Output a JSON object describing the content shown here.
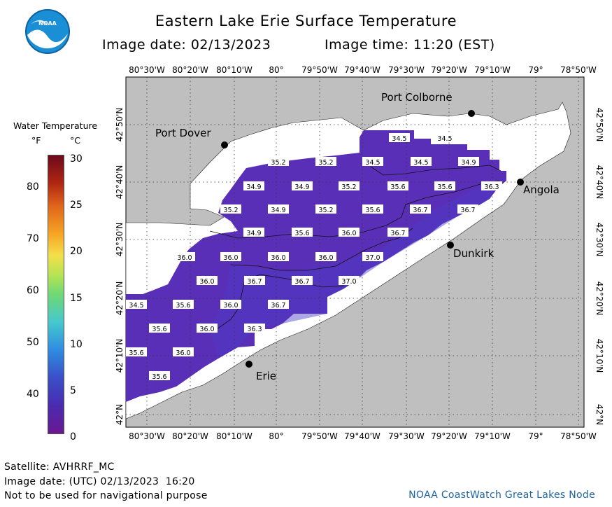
{
  "header": {
    "title": "Eastern Lake Erie Surface Temperature",
    "image_date_label": "Image date: 02/13/2023",
    "image_time_label": "Image time: 11:20 (EST)"
  },
  "logo": {
    "text": "NOAA"
  },
  "legend": {
    "title": "Water Temperature",
    "unit_f": "°F",
    "unit_c": "°C",
    "f_ticks": [
      "80",
      "70",
      "60",
      "50",
      "40"
    ],
    "c_ticks": [
      "30",
      "25",
      "20",
      "15",
      "10",
      "5",
      "0"
    ],
    "colors": [
      "#7a0b1c",
      "#d64b12",
      "#f4a21d",
      "#f6e84a",
      "#7fdc6b",
      "#45c8d6",
      "#2c7ee0",
      "#3a3fc6",
      "#5a1b9e",
      "#7a1a8f"
    ]
  },
  "map": {
    "land_color": "#bfbfbf",
    "ice_color": "#ffffff",
    "water_color": "#5a2fb8",
    "top_lon_labels": [
      "80°30'W",
      "80°20'W",
      "80°10'W",
      "80°",
      "79°50'W",
      "79°40'W",
      "79°30'W",
      "79°20'W",
      "79°10'W",
      "79°",
      "78°50'W"
    ],
    "bottom_lon_labels": [
      "80°30'W",
      "80°20'W",
      "80°10'W",
      "80°",
      "79°50'W",
      "79°40'W",
      "79°30'W",
      "79°20'W",
      "79°10'W",
      "79°",
      "78°50'W"
    ],
    "lat_labels": [
      "42°50'N",
      "42°40'N",
      "42°30'N",
      "42°20'N",
      "42°10'N",
      "42°N"
    ],
    "cities": [
      {
        "name": "Port Colborne"
      },
      {
        "name": "Port Dover"
      },
      {
        "name": "Angola"
      },
      {
        "name": "Dunkirk"
      },
      {
        "name": "Erie"
      }
    ],
    "temperatures": [
      "34.5",
      "34.5",
      "35.2",
      "35.2",
      "34.5",
      "34.5",
      "34.9",
      "34.9",
      "34.9",
      "35.2",
      "35.6",
      "35.6",
      "36.3",
      "35.2",
      "34.9",
      "35.2",
      "35.6",
      "36.7",
      "36.7",
      "34.9",
      "35.6",
      "36.0",
      "36.7",
      "36.0",
      "36.0",
      "36.0",
      "36.0",
      "37.0",
      "36.0",
      "36.7",
      "36.7",
      "37.0",
      "34.5",
      "35.6",
      "36.0",
      "36.7",
      "35.6",
      "36.0",
      "36.3",
      "35.6",
      "36.0",
      "35.6"
    ]
  },
  "footer": {
    "satellite": "Satellite: AVHRRF_MC",
    "utc_date": "Image date: (UTC) 02/13/2023  16:20",
    "disclaimer": "Not to be used for navigational purpose",
    "credit": "NOAA CoastWatch Great Lakes Node"
  }
}
